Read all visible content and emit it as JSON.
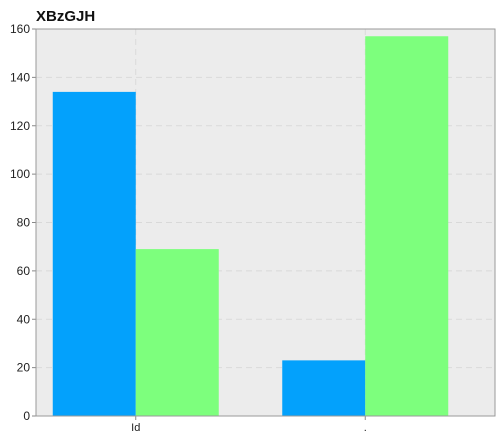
{
  "chart_data": {
    "type": "bar",
    "title": "XBzGJH",
    "xlabel": "",
    "ylabel": "",
    "categories": [
      "Id",
      "."
    ],
    "series": [
      {
        "values": [
          134,
          23
        ],
        "color": "#03a1fc"
      },
      {
        "values": [
          69,
          157
        ],
        "color": "#7dff7d"
      }
    ],
    "ylim": [
      0,
      160
    ],
    "yticks": [
      0,
      20,
      40,
      60,
      80,
      100,
      120,
      140,
      160
    ],
    "grid": true,
    "legend": "none",
    "plot_background": "#ececec"
  }
}
